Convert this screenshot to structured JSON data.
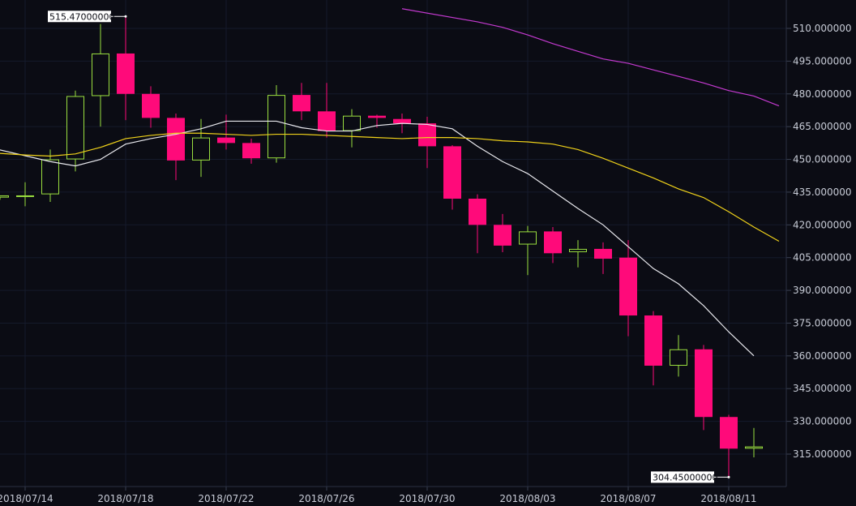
{
  "chart_data": {
    "type": "candlestick",
    "x_ticks": [
      "2018/07/14",
      "2018/07/18",
      "2018/07/22",
      "2018/07/26",
      "2018/07/30",
      "2018/08/03",
      "2018/08/07",
      "2018/08/11"
    ],
    "y_ticks": [
      "510.000000",
      "495.000000",
      "480.000000",
      "465.000000",
      "450.000000",
      "435.000000",
      "420.000000",
      "405.000000",
      "390.000000",
      "375.000000",
      "360.000000",
      "345.000000",
      "330.000000",
      "315.000000"
    ],
    "ylim": [
      300,
      522
    ],
    "grid": true,
    "annotations": {
      "high": "515.47000000",
      "low": "304.45000000"
    },
    "colors": {
      "up": "#9adf3f",
      "down": "#ff0a7a",
      "ma_fast": "#e9e9ee",
      "ma_mid": "#f0d21a",
      "ma_slow": "#c43ad0",
      "grid": "#151a2b",
      "background": "#0b0c14",
      "text": "#c7cbd6"
    },
    "candles": [
      {
        "date": "2018/07/13",
        "open": 432.5,
        "high": 433.5,
        "low": 431.5,
        "close": 433.5
      },
      {
        "date": "2018/07/14",
        "open": 433.0,
        "high": 439.5,
        "low": 428.5,
        "close": 433.5
      },
      {
        "date": "2018/07/15",
        "open": 434.0,
        "high": 454.5,
        "low": 430.5,
        "close": 450.0
      },
      {
        "date": "2018/07/16",
        "open": 450.0,
        "high": 481.5,
        "low": 444.5,
        "close": 479.0
      },
      {
        "date": "2018/07/17",
        "open": 479.0,
        "high": 512.0,
        "low": 465.0,
        "close": 498.5
      },
      {
        "date": "2018/07/18",
        "open": 498.5,
        "high": 515.47,
        "low": 468.0,
        "close": 480.0
      },
      {
        "date": "2018/07/19",
        "open": 480.0,
        "high": 483.5,
        "low": 464.5,
        "close": 469.0
      },
      {
        "date": "2018/07/20",
        "open": 469.0,
        "high": 471.0,
        "low": 440.5,
        "close": 449.5
      },
      {
        "date": "2018/07/21",
        "open": 449.5,
        "high": 468.5,
        "low": 442.0,
        "close": 460.0
      },
      {
        "date": "2018/07/22",
        "open": 460.0,
        "high": 470.5,
        "low": 454.5,
        "close": 457.5
      },
      {
        "date": "2018/07/23",
        "open": 457.5,
        "high": 459.5,
        "low": 448.0,
        "close": 450.5
      },
      {
        "date": "2018/07/24",
        "open": 450.5,
        "high": 484.0,
        "low": 448.5,
        "close": 479.5
      },
      {
        "date": "2018/07/25",
        "open": 479.5,
        "high": 485.0,
        "low": 468.0,
        "close": 472.0
      },
      {
        "date": "2018/07/26",
        "open": 472.0,
        "high": 485.0,
        "low": 460.0,
        "close": 463.0
      },
      {
        "date": "2018/07/27",
        "open": 463.0,
        "high": 473.0,
        "low": 455.5,
        "close": 470.0
      },
      {
        "date": "2018/07/28",
        "open": 470.0,
        "high": 470.5,
        "low": 464.5,
        "close": 469.0
      },
      {
        "date": "2018/07/29",
        "open": 468.5,
        "high": 471.0,
        "low": 462.0,
        "close": 466.5
      },
      {
        "date": "2018/07/30",
        "open": 466.5,
        "high": 469.5,
        "low": 446.0,
        "close": 456.0
      },
      {
        "date": "2018/07/31",
        "open": 456.0,
        "high": 456.5,
        "low": 427.0,
        "close": 432.0
      },
      {
        "date": "2018/08/01",
        "open": 432.0,
        "high": 434.0,
        "low": 407.0,
        "close": 420.0
      },
      {
        "date": "2018/08/02",
        "open": 420.0,
        "high": 425.0,
        "low": 407.5,
        "close": 410.5
      },
      {
        "date": "2018/08/03",
        "open": 411.0,
        "high": 419.5,
        "low": 397.0,
        "close": 417.0
      },
      {
        "date": "2018/08/04",
        "open": 417.0,
        "high": 419.0,
        "low": 402.5,
        "close": 407.0
      },
      {
        "date": "2018/08/05",
        "open": 407.5,
        "high": 413.0,
        "low": 400.5,
        "close": 409.0
      },
      {
        "date": "2018/08/06",
        "open": 409.0,
        "high": 412.0,
        "low": 397.5,
        "close": 404.5
      },
      {
        "date": "2018/08/07",
        "open": 405.0,
        "high": 413.0,
        "low": 369.0,
        "close": 378.5
      },
      {
        "date": "2018/08/08",
        "open": 378.5,
        "high": 380.5,
        "low": 346.5,
        "close": 355.5
      },
      {
        "date": "2018/08/09",
        "open": 355.5,
        "high": 369.5,
        "low": 350.5,
        "close": 363.0
      },
      {
        "date": "2018/08/10",
        "open": 363.0,
        "high": 365.0,
        "low": 326.0,
        "close": 332.0
      },
      {
        "date": "2018/08/11",
        "open": 332.0,
        "high": 333.0,
        "low": 304.45,
        "close": 317.5
      },
      {
        "date": "2018/08/12",
        "open": 317.5,
        "high": 327.0,
        "low": 313.5,
        "close": 318.5
      }
    ],
    "series": [
      {
        "type": "line",
        "color": "#e9e9ee",
        "points": [
          {
            "x": "2018/07/12",
            "y": 457.0
          },
          {
            "x": "2018/07/15",
            "y": 449.0
          },
          {
            "x": "2018/07/16",
            "y": 447.0
          },
          {
            "x": "2018/07/17",
            "y": 450.0
          },
          {
            "x": "2018/07/18",
            "y": 457.0
          },
          {
            "x": "2018/07/19",
            "y": 459.5
          },
          {
            "x": "2018/07/20",
            "y": 461.5
          },
          {
            "x": "2018/07/21",
            "y": 464.0
          },
          {
            "x": "2018/07/22",
            "y": 467.5
          },
          {
            "x": "2018/07/23",
            "y": 467.5
          },
          {
            "x": "2018/07/24",
            "y": 467.5
          },
          {
            "x": "2018/07/25",
            "y": 464.5
          },
          {
            "x": "2018/07/26",
            "y": 463.0
          },
          {
            "x": "2018/07/27",
            "y": 463.0
          },
          {
            "x": "2018/07/28",
            "y": 465.5
          },
          {
            "x": "2018/07/29",
            "y": 466.5
          },
          {
            "x": "2018/07/30",
            "y": 466.0
          },
          {
            "x": "2018/07/31",
            "y": 464.0
          },
          {
            "x": "2018/08/01",
            "y": 456.0
          },
          {
            "x": "2018/08/02",
            "y": 449.0
          },
          {
            "x": "2018/08/03",
            "y": 443.5
          },
          {
            "x": "2018/08/04",
            "y": 435.5
          },
          {
            "x": "2018/08/05",
            "y": 427.5
          },
          {
            "x": "2018/08/06",
            "y": 420.0
          },
          {
            "x": "2018/08/07",
            "y": 410.0
          },
          {
            "x": "2018/08/08",
            "y": 400.0
          },
          {
            "x": "2018/08/09",
            "y": 393.0
          },
          {
            "x": "2018/08/10",
            "y": 383.0
          },
          {
            "x": "2018/08/11",
            "y": 371.0
          },
          {
            "x": "2018/08/12",
            "y": 360.0
          }
        ]
      },
      {
        "type": "line",
        "color": "#f0d21a",
        "points": [
          {
            "x": "2018/07/12",
            "y": 453.5
          },
          {
            "x": "2018/07/14",
            "y": 452.0
          },
          {
            "x": "2018/07/15",
            "y": 451.5
          },
          {
            "x": "2018/07/16",
            "y": 452.5
          },
          {
            "x": "2018/07/17",
            "y": 455.5
          },
          {
            "x": "2018/07/18",
            "y": 459.5
          },
          {
            "x": "2018/07/19",
            "y": 461.0
          },
          {
            "x": "2018/07/20",
            "y": 462.0
          },
          {
            "x": "2018/07/21",
            "y": 462.0
          },
          {
            "x": "2018/07/22",
            "y": 461.5
          },
          {
            "x": "2018/07/23",
            "y": 461.0
          },
          {
            "x": "2018/07/24",
            "y": 461.5
          },
          {
            "x": "2018/07/25",
            "y": 461.5
          },
          {
            "x": "2018/07/26",
            "y": 461.0
          },
          {
            "x": "2018/07/27",
            "y": 460.5
          },
          {
            "x": "2018/07/28",
            "y": 460.0
          },
          {
            "x": "2018/07/29",
            "y": 459.5
          },
          {
            "x": "2018/07/30",
            "y": 460.0
          },
          {
            "x": "2018/07/31",
            "y": 460.0
          },
          {
            "x": "2018/08/01",
            "y": 459.5
          },
          {
            "x": "2018/08/02",
            "y": 458.5
          },
          {
            "x": "2018/08/03",
            "y": 458.0
          },
          {
            "x": "2018/08/04",
            "y": 457.0
          },
          {
            "x": "2018/08/05",
            "y": 454.5
          },
          {
            "x": "2018/08/06",
            "y": 450.5
          },
          {
            "x": "2018/08/07",
            "y": 446.0
          },
          {
            "x": "2018/08/08",
            "y": 441.5
          },
          {
            "x": "2018/08/09",
            "y": 436.5
          },
          {
            "x": "2018/08/10",
            "y": 432.5
          },
          {
            "x": "2018/08/11",
            "y": 426.0
          },
          {
            "x": "2018/08/12",
            "y": 419.0
          },
          {
            "x": "2018/08/13",
            "y": 412.5
          }
        ]
      },
      {
        "type": "line",
        "color": "#c43ad0",
        "points": [
          {
            "x": "2018/07/29",
            "y": 519.0
          },
          {
            "x": "2018/08/01",
            "y": 513.0
          },
          {
            "x": "2018/08/02",
            "y": 510.5
          },
          {
            "x": "2018/08/03",
            "y": 507.0
          },
          {
            "x": "2018/08/04",
            "y": 503.0
          },
          {
            "x": "2018/08/05",
            "y": 499.5
          },
          {
            "x": "2018/08/06",
            "y": 496.0
          },
          {
            "x": "2018/08/07",
            "y": 494.0
          },
          {
            "x": "2018/08/08",
            "y": 491.0
          },
          {
            "x": "2018/08/09",
            "y": 488.0
          },
          {
            "x": "2018/08/10",
            "y": 485.0
          },
          {
            "x": "2018/08/11",
            "y": 481.5
          },
          {
            "x": "2018/08/12",
            "y": 479.0
          },
          {
            "x": "2018/08/13",
            "y": 474.5
          }
        ]
      }
    ]
  }
}
